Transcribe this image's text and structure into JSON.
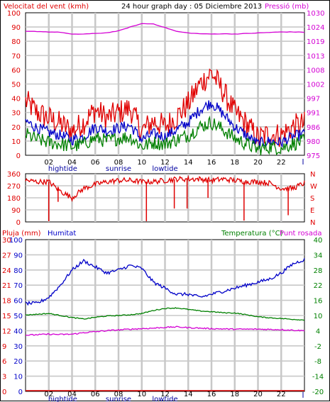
{
  "header": {
    "wind_label": "Velocitat del vent (kmh)",
    "title": "24 hour graph day : 05 Diciembre 2013",
    "pressure_label": "Pressió (mb)"
  },
  "colors": {
    "wind_gust": "#e00000",
    "wind_avg": "#0000c8",
    "wind_min": "#008000",
    "pressure": "#d400d4",
    "direction": "#e00000",
    "humidity": "#0000c8",
    "temperature": "#008000",
    "dewpoint": "#d400d4",
    "rain": "#e00000",
    "grid": "#c8c8c8",
    "tick_blue": "#0000a0"
  },
  "x_axis": {
    "hour_labels": [
      "02",
      "04",
      "06",
      "08",
      "10",
      "12",
      "14",
      "16",
      "18",
      "20",
      "22"
    ],
    "events": [
      "hightide",
      "sunrise",
      "lowtide"
    ]
  },
  "chart_data": [
    {
      "type": "line",
      "title": "24 hour graph day : 05 Diciembre 2013",
      "left_axis_label": "Velocitat del vent (kmh)",
      "right_axis_label": "Pressió (mb)",
      "left_ylim": [
        0,
        100
      ],
      "left_ticks": [
        "0",
        "10",
        "20",
        "30",
        "40",
        "50",
        "60",
        "70",
        "80",
        "90",
        "100"
      ],
      "right_ylim": [
        975,
        1030
      ],
      "right_ticks": [
        "975",
        "980",
        "986",
        "991",
        "997",
        "1002",
        "1008",
        "1013",
        "1019",
        "1024",
        "1030"
      ],
      "x_hours": [
        0,
        1,
        2,
        3,
        4,
        5,
        6,
        7,
        8,
        9,
        10,
        11,
        12,
        13,
        14,
        15,
        16,
        17,
        18,
        19,
        20,
        21,
        22,
        23,
        24
      ],
      "series": [
        {
          "key": "gust",
          "values": [
            38,
            30,
            26,
            22,
            17,
            23,
            32,
            26,
            30,
            33,
            17,
            24,
            20,
            27,
            36,
            50,
            58,
            45,
            30,
            22,
            12,
            15,
            14,
            20,
            22
          ]
        },
        {
          "key": "avg",
          "values": [
            24,
            19,
            16,
            14,
            11,
            13,
            20,
            17,
            19,
            21,
            11,
            15,
            13,
            18,
            23,
            32,
            37,
            29,
            20,
            14,
            8,
            10,
            9,
            13,
            15
          ]
        },
        {
          "key": "min",
          "values": [
            15,
            11,
            9,
            8,
            6,
            8,
            12,
            10,
            12,
            13,
            6,
            9,
            8,
            11,
            14,
            20,
            23,
            18,
            12,
            8,
            4,
            6,
            5,
            8,
            10
          ]
        },
        {
          "key": "pressure",
          "values": [
            1022.8,
            1022.8,
            1022.6,
            1022.5,
            1021.7,
            1021.8,
            1022.0,
            1022.3,
            1023.0,
            1024.5,
            1025.8,
            1025.7,
            1024.3,
            1022.8,
            1022.2,
            1021.9,
            1021.8,
            1021.9,
            1021.8,
            1022.0,
            1022.2,
            1022.4,
            1022.6,
            1022.6,
            1022.5
          ]
        }
      ]
    },
    {
      "type": "line",
      "left_axis_label": "",
      "left_ylim": [
        0,
        360
      ],
      "left_ticks": [
        "0",
        "90",
        "180",
        "270",
        "360"
      ],
      "right_ticks": [
        "N",
        "E",
        "S",
        "W",
        "N"
      ],
      "x_hours": [
        0,
        1,
        2,
        3,
        4,
        5,
        6,
        7,
        8,
        9,
        10,
        11,
        12,
        13,
        14,
        15,
        16,
        17,
        18,
        19,
        20,
        21,
        22,
        23,
        24
      ],
      "series": [
        {
          "key": "direction",
          "values": [
            310,
            300,
            300,
            230,
            180,
            250,
            280,
            300,
            310,
            310,
            300,
            300,
            310,
            320,
            320,
            320,
            310,
            320,
            310,
            300,
            300,
            290,
            250,
            250,
            290
          ]
        }
      ],
      "spikes": [
        {
          "hour": 2.0,
          "value": 5
        },
        {
          "hour": 10.4,
          "value": 5
        },
        {
          "hour": 12.8,
          "value": 100
        },
        {
          "hour": 13.9,
          "value": 100
        },
        {
          "hour": 15.7,
          "value": 180
        },
        {
          "hour": 18.8,
          "value": 10
        },
        {
          "hour": 22.6,
          "value": 50
        },
        {
          "hour": 2.8,
          "value": 150
        }
      ]
    },
    {
      "type": "line",
      "left_axis_label": "Pluja (mm)",
      "humidity_label": "Humitat",
      "right_axis_label": "Temperatura (°C)",
      "right_axis_label2": "Punt rosada",
      "rain_ylim": [
        0,
        30
      ],
      "rain_ticks": [
        "0",
        "3",
        "6",
        "9",
        "12",
        "15",
        "18",
        "21",
        "24",
        "27",
        "30"
      ],
      "humidity_ylim": [
        0,
        100
      ],
      "humidity_ticks": [
        "0",
        "10",
        "20",
        "30",
        "40",
        "50",
        "60",
        "70",
        "80",
        "90",
        "100"
      ],
      "temp_ylim": [
        -20,
        40
      ],
      "temp_ticks": [
        "-20",
        "-14",
        "-8",
        "-2",
        "4",
        "10",
        "16",
        "22",
        "28",
        "34",
        "40"
      ],
      "x_hours": [
        0,
        1,
        2,
        3,
        4,
        5,
        6,
        7,
        8,
        9,
        10,
        11,
        12,
        13,
        14,
        15,
        16,
        17,
        18,
        19,
        20,
        21,
        22,
        23,
        24
      ],
      "series": [
        {
          "key": "humidity",
          "values": [
            58,
            58,
            62,
            70,
            80,
            86,
            82,
            78,
            80,
            83,
            81,
            72,
            68,
            64,
            64,
            62,
            64,
            66,
            68,
            70,
            72,
            74,
            78,
            84,
            87
          ]
        },
        {
          "key": "temperature",
          "values": [
            10.2,
            10.5,
            10.8,
            10.0,
            9.2,
            8.6,
            9.3,
            9.8,
            10.0,
            10.3,
            10.8,
            12.0,
            12.8,
            13.0,
            12.4,
            11.8,
            11.5,
            11.1,
            11.0,
            10.3,
            9.5,
            9.1,
            8.8,
            8.5,
            8.2
          ]
        },
        {
          "key": "dewpoint",
          "values": [
            2.2,
            2.4,
            2.6,
            2.5,
            2.6,
            3.2,
            3.6,
            4.0,
            4.3,
            4.6,
            4.8,
            5.0,
            5.3,
            5.5,
            5.2,
            5.0,
            4.8,
            4.7,
            4.6,
            4.6,
            4.6,
            4.5,
            4.4,
            4.2,
            4.0
          ]
        },
        {
          "key": "rain",
          "values": [
            0,
            0,
            0,
            0,
            0,
            0,
            0,
            0,
            0,
            0,
            0,
            0,
            0,
            0,
            0,
            0,
            0,
            0,
            0,
            0,
            0,
            0,
            0,
            0,
            0
          ]
        }
      ]
    }
  ]
}
